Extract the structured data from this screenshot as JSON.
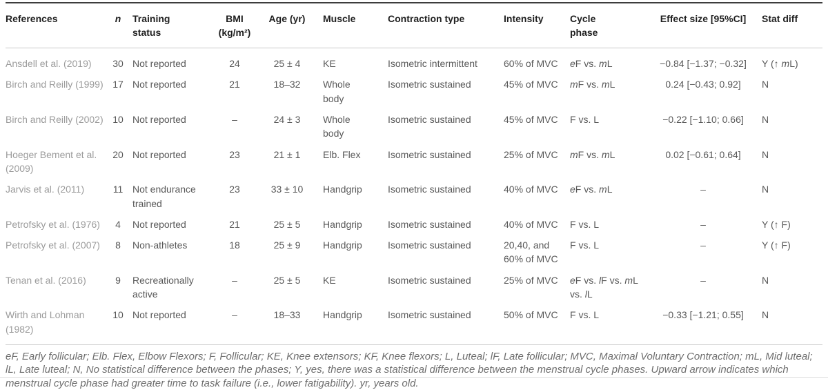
{
  "table": {
    "columns": [
      {
        "key": "references",
        "label": "References"
      },
      {
        "key": "n",
        "label": "*n*"
      },
      {
        "key": "training_status",
        "label": "Training\nstatus"
      },
      {
        "key": "bmi",
        "label": "BMI\n(kg/m²)"
      },
      {
        "key": "age",
        "label": "Age (yr)"
      },
      {
        "key": "muscle",
        "label": "Muscle"
      },
      {
        "key": "contraction_type",
        "label": "Contraction type"
      },
      {
        "key": "intensity",
        "label": "Intensity"
      },
      {
        "key": "cycle_phase",
        "label": "Cycle\nphase"
      },
      {
        "key": "effect_size",
        "label": "Effect size [95%CI]"
      },
      {
        "key": "stat_diff",
        "label": "Stat diff"
      }
    ],
    "rows": [
      {
        "references": "Ansdell et al. (2019)",
        "n": "30",
        "training_status": "Not reported",
        "bmi": "24",
        "age": "25 ± 4",
        "muscle": "KE",
        "contraction_type": "Isometric intermittent",
        "intensity": "60% of MVC",
        "cycle_phase": "*e*F vs. *m*L",
        "effect_size": "−0.84 [−1.37; −0.32]",
        "stat_diff": "Y (↑ *m*L)"
      },
      {
        "references": "Birch and Reilly (1999)",
        "n": "17",
        "training_status": "Not reported",
        "bmi": "21",
        "age": "18–32",
        "muscle": "Whole body",
        "contraction_type": "Isometric sustained",
        "intensity": "45% of MVC",
        "cycle_phase": "*m*F vs. *m*L",
        "effect_size": "0.24 [−0.43; 0.92]",
        "stat_diff": "N"
      },
      {
        "references": "Birch and Reilly (2002)",
        "n": "10",
        "training_status": "Not reported",
        "bmi": "–",
        "age": "24 ± 3",
        "muscle": "Whole body",
        "contraction_type": "Isometric sustained",
        "intensity": "45% of MVC",
        "cycle_phase": "F vs. L",
        "effect_size": "−0.22 [−1.10; 0.66]",
        "stat_diff": "N"
      },
      {
        "references": "Hoeger Bement et al. (2009)",
        "n": "20",
        "training_status": "Not reported",
        "bmi": "23",
        "age": "21 ± 1",
        "muscle": "Elb. Flex",
        "contraction_type": "Isometric sustained",
        "intensity": "25% of MVC",
        "cycle_phase": "*m*F vs. *m*L",
        "effect_size": "0.02 [−0.61; 0.64]",
        "stat_diff": "N"
      },
      {
        "references": "Jarvis et al. (2011)",
        "n": "11",
        "training_status": "Not endurance trained",
        "bmi": "23",
        "age": "33 ± 10",
        "muscle": "Handgrip",
        "contraction_type": "Isometric sustained",
        "intensity": "40% of MVC",
        "cycle_phase": "*e*F vs. *m*L",
        "effect_size": "–",
        "stat_diff": "N"
      },
      {
        "references": "Petrofsky et al. (1976)",
        "n": "4",
        "training_status": "Not reported",
        "bmi": "21",
        "age": "25 ± 5",
        "muscle": "Handgrip",
        "contraction_type": "Isometric sustained",
        "intensity": "40% of MVC",
        "cycle_phase": "F vs. L",
        "effect_size": "–",
        "stat_diff": "Y (↑ F)"
      },
      {
        "references": "Petrofsky et al. (2007)",
        "n": "8",
        "training_status": "Non-athletes",
        "bmi": "18",
        "age": "25 ± 9",
        "muscle": "Handgrip",
        "contraction_type": "Isometric sustained",
        "intensity": "20,40, and 60% of MVC",
        "cycle_phase": "F vs. L",
        "effect_size": "–",
        "stat_diff": "Y (↑ F)"
      },
      {
        "references": "Tenan et al. (2016)",
        "n": "9",
        "training_status": "Recreationally active",
        "bmi": "–",
        "age": "25 ± 5",
        "muscle": "KE",
        "contraction_type": "Isometric sustained",
        "intensity": "25% of MVC",
        "cycle_phase": "*e*F vs. *l*F vs. *m*L vs. *l*L",
        "effect_size": "–",
        "stat_diff": "N"
      },
      {
        "references": "Wirth and Lohman (1982)",
        "n": "10",
        "training_status": "Not reported",
        "bmi": "–",
        "age": "18–33",
        "muscle": "Handgrip",
        "contraction_type": "Isometric sustained",
        "intensity": "50% of MVC",
        "cycle_phase": "F vs. L",
        "effect_size": "−0.33 [−1.21; 0.55]",
        "stat_diff": "N"
      }
    ]
  },
  "footnote": "eF, Early follicular; Elb. Flex, Elbow Flexors; F, Follicular; KE, Knee extensors; KF, Knee flexors; L, Luteal; lF, Late follicular; MVC, Maximal Voluntary Contraction; mL, Mid luteal; lL, Late luteal; N, No statistical difference between the phases; Y, yes, there was a statistical difference between the menstrual cycle phases. Upward arrow indicates which menstrual cycle phase had greater time to task failure (i.e., lower fatigability). yr, years old."
}
